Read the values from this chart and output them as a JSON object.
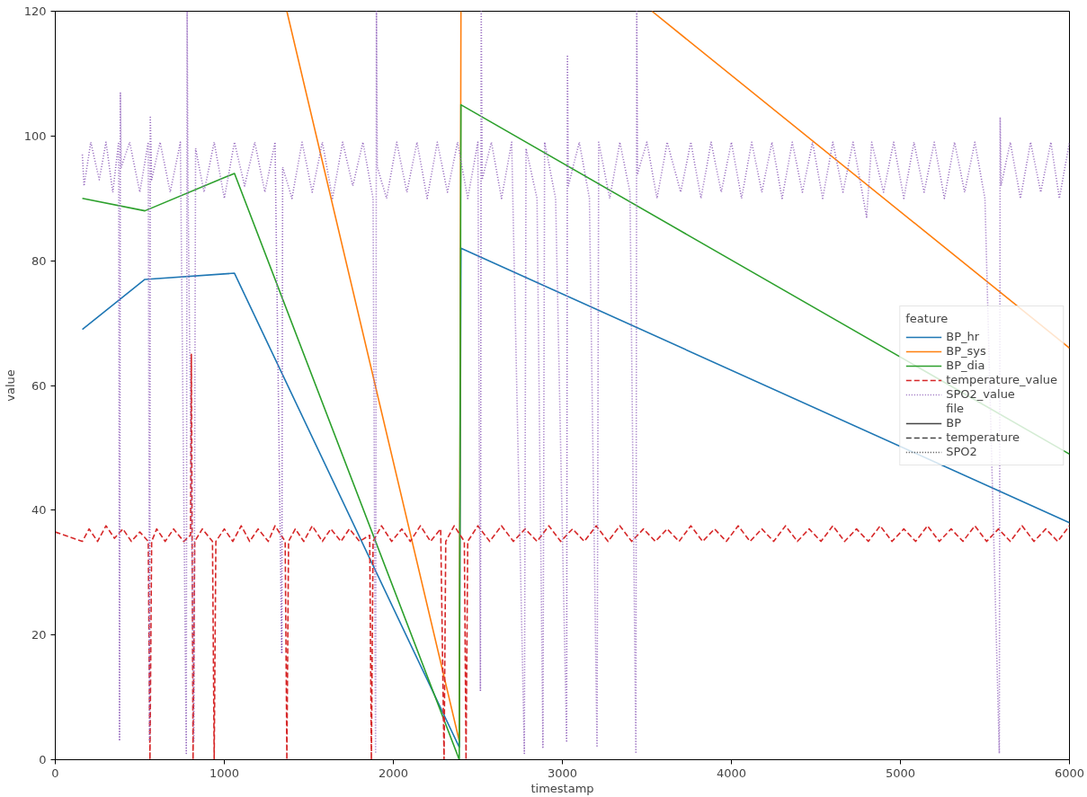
{
  "chart_data": {
    "type": "line",
    "xlabel": "timestamp",
    "ylabel": "value",
    "legend_title": "feature",
    "annotations": [
      "file"
    ],
    "legend": "right",
    "grid": false,
    "xlim": [
      0,
      6000
    ],
    "xticks": [
      0,
      1000,
      2000,
      3000,
      4000,
      5000,
      6000
    ],
    "ylim": [
      0,
      120
    ],
    "yticks": [
      0,
      20,
      40,
      60,
      80,
      100,
      120
    ],
    "series": [
      {
        "name": "BP_hr",
        "color": "#1f77b4",
        "line_style": "solid",
        "x": [
          160,
          530,
          1060,
          2390,
          2400,
          6000
        ],
        "values": [
          69,
          77,
          78,
          2,
          82,
          38
        ]
      },
      {
        "name": "BP_sys",
        "color": "#ff7f0e",
        "line_style": "solid",
        "x": [
          1370,
          2390,
          2400,
          3000,
          3530,
          6000
        ],
        "values": [
          120,
          3,
          120,
          null,
          120,
          66
        ]
      },
      {
        "name": "BP_dia",
        "color": "#2ca02c",
        "line_style": "solid",
        "x": [
          160,
          530,
          1060,
          2390,
          2400,
          6000
        ],
        "values": [
          90,
          88,
          94,
          0,
          105,
          49
        ]
      },
      {
        "name": "temperature_value",
        "color": "#d62728",
        "line_style": "dashed",
        "x": [
          0,
          160,
          200,
          250,
          300,
          350,
          400,
          450,
          500,
          550,
          560,
          570,
          600,
          650,
          700,
          760,
          800,
          805,
          815,
          825,
          870,
          930,
          940,
          950,
          1000,
          1050,
          1100,
          1150,
          1200,
          1260,
          1300,
          1360,
          1370,
          1380,
          1420,
          1470,
          1520,
          1580,
          1630,
          1690,
          1740,
          1800,
          1860,
          1870,
          1880,
          1930,
          1990,
          2050,
          2100,
          2160,
          2220,
          2280,
          2300,
          2310,
          2360,
          2420,
          2430,
          2440,
          2500,
          2570,
          2640,
          2710,
          2780,
          2850,
          2920,
          2990,
          3060,
          3130,
          3200,
          3270,
          3340,
          3410,
          3480,
          3550,
          3620,
          3690,
          3760,
          3830,
          3900,
          3970,
          4040,
          4110,
          4180,
          4250,
          4320,
          4390,
          4460,
          4530,
          4600,
          4670,
          4740,
          4810,
          4880,
          4950,
          5020,
          5090,
          5160,
          5230,
          5300,
          5370,
          5440,
          5510,
          5580,
          5650,
          5720,
          5790,
          5860,
          5930,
          6000
        ],
        "values": [
          36.5,
          35,
          37,
          35,
          37.5,
          35.5,
          37,
          35,
          36.5,
          35,
          0,
          35,
          37,
          35,
          37,
          35,
          36,
          65,
          0,
          35,
          37,
          35,
          0,
          35,
          37,
          35,
          37.5,
          35,
          37,
          35,
          37.5,
          35,
          0,
          35,
          37,
          35,
          37.5,
          35,
          37,
          35,
          37,
          35,
          36,
          0,
          35,
          37.5,
          35,
          37,
          35,
          37.5,
          35,
          37,
          0,
          35,
          37.5,
          35,
          0,
          35,
          37.5,
          35,
          37.5,
          35,
          37,
          35,
          37.5,
          35,
          37,
          35,
          37.5,
          35,
          37.5,
          35,
          37,
          35,
          37,
          35,
          37.5,
          35,
          37,
          35,
          37.5,
          35,
          37,
          35,
          37.5,
          35,
          37,
          35,
          37.5,
          35,
          37,
          35,
          37.5,
          35,
          37,
          35,
          37.5,
          35,
          37,
          35,
          37.5,
          35,
          37,
          35,
          37.5,
          35,
          37,
          35,
          37.5
        ]
      },
      {
        "name": "SPO2_value",
        "color": "#9467bd",
        "line_style": "dotted",
        "x": [
          160,
          170,
          210,
          260,
          300,
          340,
          375,
          380,
          385,
          390,
          440,
          500,
          550,
          558,
          562,
          570,
          620,
          680,
          740,
          775,
          780,
          785,
          820,
          830,
          880,
          940,
          1000,
          1060,
          1120,
          1180,
          1240,
          1300,
          1340,
          1345,
          1400,
          1460,
          1520,
          1580,
          1640,
          1700,
          1760,
          1820,
          1880,
          1895,
          1900,
          1905,
          1960,
          2020,
          2080,
          2140,
          2200,
          2260,
          2320,
          2380,
          2440,
          2500,
          2515,
          2520,
          2525,
          2580,
          2640,
          2700,
          2775,
          2785,
          2850,
          2885,
          2895,
          2960,
          3025,
          3030,
          3035,
          3100,
          3160,
          3205,
          3215,
          3280,
          3340,
          3400,
          3435,
          3440,
          3445,
          3500,
          3560,
          3620,
          3700,
          3760,
          3820,
          3880,
          3940,
          4000,
          4060,
          4120,
          4180,
          4240,
          4300,
          4360,
          4420,
          4480,
          4540,
          4600,
          4660,
          4720,
          4780,
          4800,
          4830,
          4900,
          4960,
          5020,
          5080,
          5140,
          5200,
          5260,
          5320,
          5380,
          5440,
          5500,
          5585,
          5590,
          5595,
          5650,
          5710,
          5770,
          5830,
          5890,
          5940,
          6000
        ],
        "values": [
          97,
          92,
          99,
          93,
          99,
          91,
          99,
          3,
          107,
          95,
          99,
          91,
          99,
          3,
          103,
          93,
          99,
          91,
          99,
          1,
          120,
          92,
          3,
          98,
          91,
          99,
          90,
          99,
          92,
          99,
          91,
          99,
          17,
          95,
          90,
          99,
          91,
          99,
          90,
          99,
          92,
          99,
          90,
          1,
          120,
          95,
          90,
          99,
          91,
          99,
          90,
          99,
          91,
          99,
          90,
          99,
          11,
          120,
          93,
          99,
          90,
          99,
          1,
          98,
          90,
          2,
          99,
          90,
          3,
          113,
          92,
          99,
          90,
          2,
          99,
          90,
          99,
          91,
          1,
          120,
          94,
          99,
          90,
          99,
          91,
          99,
          90,
          99,
          91,
          99,
          90,
          99,
          91,
          99,
          90,
          99,
          91,
          99,
          90,
          99,
          91,
          99,
          90,
          87,
          99,
          91,
          99,
          90,
          99,
          91,
          99,
          90,
          99,
          91,
          99,
          90,
          1,
          103,
          92,
          99,
          90,
          99,
          91,
          99,
          90,
          99
        ]
      },
      {
        "name": "BP",
        "color": "#444444",
        "line_style": "solid"
      },
      {
        "name": "temperature",
        "color": "#444444",
        "line_style": "dashed"
      },
      {
        "name": "SPO2",
        "color": "#444444",
        "line_style": "dotted"
      }
    ]
  }
}
